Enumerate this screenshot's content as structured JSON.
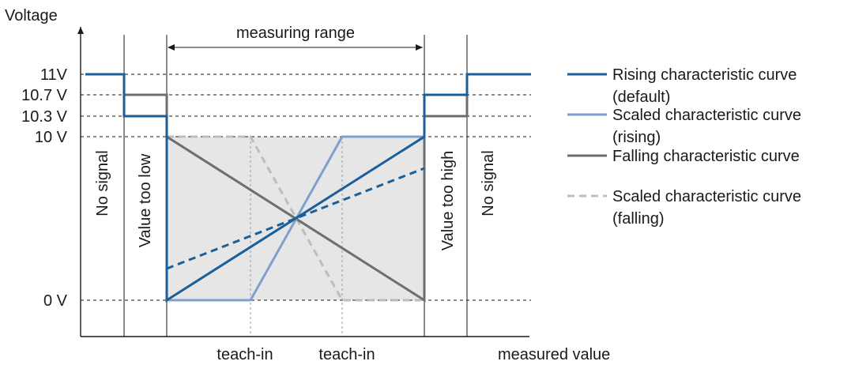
{
  "axes": {
    "y_label": "Voltage",
    "x_label": "measured value",
    "y_ticks": [
      "11V",
      "10.7 V",
      "10.3 V",
      "10 V",
      "0 V"
    ]
  },
  "top_annotation": "measuring range",
  "zones": {
    "no_signal_left": "No signal",
    "too_low": "Value too low",
    "too_high": "Value too high",
    "no_signal_right": "No signal"
  },
  "teach_labels": [
    "teach-in",
    "teach-in"
  ],
  "legend": [
    {
      "line1": "Rising characteristic curve",
      "line2": "(default)",
      "color": "#1a5f9a",
      "style": "solid"
    },
    {
      "line1": "Scaled characteristic curve",
      "line2": "(rising)",
      "color": "#7fa0cc",
      "style": "solid"
    },
    {
      "line1": "Falling characteristic curve",
      "line2": "",
      "color": "#6b6f72",
      "style": "solid"
    },
    {
      "line1": "Scaled characteristic curve",
      "line2": "(falling)",
      "color": "#bdbdbd",
      "style": "dashed"
    }
  ],
  "colors": {
    "rising": "#1a5f9a",
    "scaled_rising": "#7fa0cc",
    "falling": "#6b6f72",
    "scaled_falling": "#bdbdbd",
    "range_fill": "#e6e6e6"
  }
}
